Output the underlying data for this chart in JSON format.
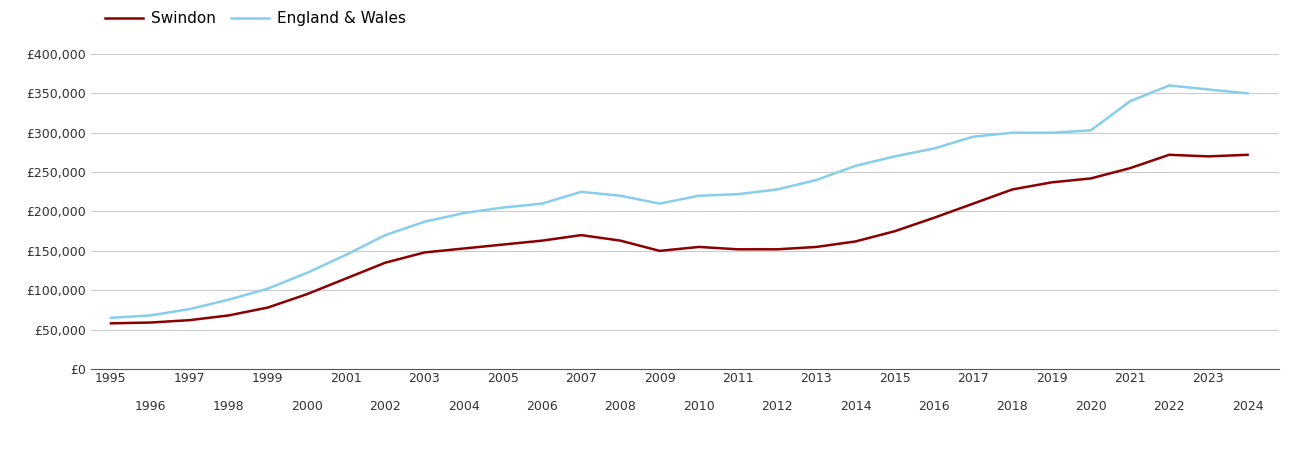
{
  "years": [
    1995,
    1996,
    1997,
    1998,
    1999,
    2000,
    2001,
    2002,
    2003,
    2004,
    2005,
    2006,
    2007,
    2008,
    2009,
    2010,
    2011,
    2012,
    2013,
    2014,
    2015,
    2016,
    2017,
    2018,
    2019,
    2020,
    2021,
    2022,
    2023,
    2024
  ],
  "swindon": [
    58000,
    59000,
    62000,
    68000,
    78000,
    95000,
    115000,
    135000,
    148000,
    153000,
    158000,
    163000,
    170000,
    163000,
    150000,
    155000,
    152000,
    152000,
    155000,
    162000,
    175000,
    192000,
    210000,
    228000,
    237000,
    242000,
    255000,
    272000,
    270000,
    272000
  ],
  "england_wales": [
    65000,
    68000,
    76000,
    88000,
    102000,
    122000,
    145000,
    170000,
    187000,
    198000,
    205000,
    210000,
    225000,
    220000,
    210000,
    220000,
    222000,
    228000,
    240000,
    258000,
    270000,
    280000,
    295000,
    300000,
    300000,
    303000,
    340000,
    360000,
    355000,
    350000
  ],
  "swindon_color": "#8B0000",
  "england_wales_color": "#87CEEB",
  "ylim": [
    0,
    400000
  ],
  "yticks": [
    0,
    50000,
    100000,
    150000,
    200000,
    250000,
    300000,
    350000,
    400000
  ],
  "line_width": 1.8,
  "legend_labels": [
    "Swindon",
    "England & Wales"
  ],
  "background_color": "#ffffff",
  "grid_color": "#cccccc",
  "odd_years": [
    1995,
    1997,
    1999,
    2001,
    2003,
    2005,
    2007,
    2009,
    2011,
    2013,
    2015,
    2017,
    2019,
    2021,
    2023
  ],
  "even_years": [
    1996,
    1998,
    2000,
    2002,
    2004,
    2006,
    2008,
    2010,
    2012,
    2014,
    2016,
    2018,
    2020,
    2022,
    2024
  ]
}
